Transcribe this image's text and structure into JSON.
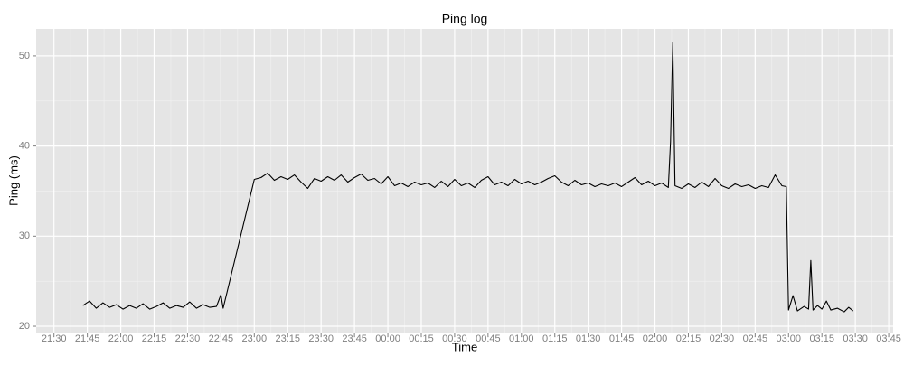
{
  "chart_data": {
    "type": "line",
    "title": "Ping log",
    "x_label": "Time",
    "y_label": "Ping (ms)",
    "grid": true,
    "xlim": [
      "21:22",
      "03:47"
    ],
    "xticks": [
      "21:30",
      "21:45",
      "22:00",
      "22:15",
      "22:30",
      "22:45",
      "23:00",
      "23:15",
      "23:30",
      "23:45",
      "00:00",
      "00:15",
      "00:30",
      "00:45",
      "01:00",
      "01:15",
      "01:30",
      "01:45",
      "02:00",
      "02:15",
      "02:30",
      "02:45",
      "03:00",
      "03:15",
      "03:30",
      "03:45"
    ],
    "ylim": [
      19.3,
      53
    ],
    "yticks": [
      20,
      30,
      40,
      50
    ],
    "x": [
      "21:43",
      "21:46",
      "21:49",
      "21:52",
      "21:55",
      "21:58",
      "22:01",
      "22:04",
      "22:07",
      "22:10",
      "22:13",
      "22:16",
      "22:19",
      "22:22",
      "22:25",
      "22:28",
      "22:31",
      "22:34",
      "22:37",
      "22:40",
      "22:43",
      "22:45",
      "22:46",
      "23:00",
      "23:03",
      "23:06",
      "23:09",
      "23:12",
      "23:15",
      "23:18",
      "23:21",
      "23:24",
      "23:27",
      "23:30",
      "23:33",
      "23:36",
      "23:39",
      "23:42",
      "23:45",
      "23:48",
      "23:51",
      "23:54",
      "23:57",
      "00:00",
      "00:03",
      "00:06",
      "00:09",
      "00:12",
      "00:15",
      "00:18",
      "00:21",
      "00:24",
      "00:27",
      "00:30",
      "00:33",
      "00:36",
      "00:39",
      "00:42",
      "00:45",
      "00:48",
      "00:51",
      "00:54",
      "00:57",
      "01:00",
      "01:03",
      "01:06",
      "01:09",
      "01:12",
      "01:15",
      "01:18",
      "01:21",
      "01:24",
      "01:27",
      "01:30",
      "01:33",
      "01:36",
      "01:39",
      "01:42",
      "01:45",
      "01:48",
      "01:51",
      "01:54",
      "01:57",
      "02:00",
      "02:03",
      "02:06",
      "02:07",
      "02:08",
      "02:09",
      "02:12",
      "02:15",
      "02:18",
      "02:21",
      "02:24",
      "02:27",
      "02:30",
      "02:33",
      "02:36",
      "02:39",
      "02:42",
      "02:45",
      "02:48",
      "02:51",
      "02:54",
      "02:57",
      "02:59",
      "03:00",
      "03:02",
      "03:04",
      "03:07",
      "03:09",
      "03:10",
      "03:11",
      "03:13",
      "03:15",
      "03:17",
      "03:19",
      "03:22",
      "03:25",
      "03:27",
      "03:29"
    ],
    "series": [
      {
        "name": "Ping",
        "color": "#000000",
        "values": [
          22.3,
          22.8,
          22.0,
          22.6,
          22.1,
          22.4,
          21.9,
          22.3,
          22.0,
          22.5,
          21.9,
          22.2,
          22.6,
          22.0,
          22.3,
          22.1,
          22.7,
          22.0,
          22.4,
          22.1,
          22.2,
          23.5,
          22.0,
          36.3,
          36.5,
          37.0,
          36.2,
          36.6,
          36.3,
          36.8,
          36.0,
          35.3,
          36.4,
          36.1,
          36.6,
          36.2,
          36.8,
          36.0,
          36.5,
          36.9,
          36.2,
          36.4,
          35.8,
          36.6,
          35.6,
          35.9,
          35.5,
          36.0,
          35.7,
          35.9,
          35.4,
          36.1,
          35.5,
          36.3,
          35.6,
          35.9,
          35.4,
          36.2,
          36.6,
          35.7,
          36.0,
          35.6,
          36.3,
          35.8,
          36.1,
          35.7,
          36.0,
          36.4,
          36.7,
          36.0,
          35.6,
          36.2,
          35.7,
          35.9,
          35.5,
          35.8,
          35.6,
          35.9,
          35.5,
          36.0,
          36.5,
          35.7,
          36.1,
          35.6,
          35.9,
          35.4,
          40.5,
          51.5,
          35.6,
          35.3,
          35.8,
          35.4,
          36.0,
          35.5,
          36.4,
          35.6,
          35.3,
          35.8,
          35.5,
          35.7,
          35.3,
          35.6,
          35.4,
          36.8,
          35.6,
          35.5,
          21.8,
          23.4,
          21.7,
          22.2,
          21.9,
          27.3,
          21.8,
          22.3,
          21.9,
          22.8,
          21.8,
          22.0,
          21.6,
          22.1,
          21.7
        ]
      }
    ]
  }
}
